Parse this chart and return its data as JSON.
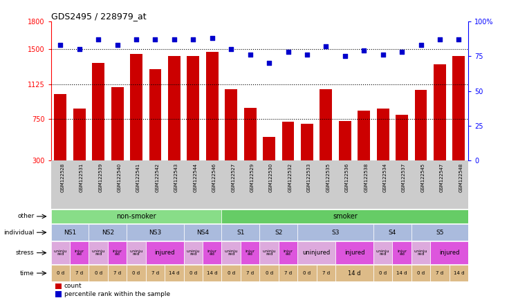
{
  "title": "GDS2495 / 228979_at",
  "samples": [
    "GSM122528",
    "GSM122531",
    "GSM122539",
    "GSM122540",
    "GSM122541",
    "GSM122542",
    "GSM122543",
    "GSM122544",
    "GSM122546",
    "GSM122527",
    "GSM122529",
    "GSM122530",
    "GSM122532",
    "GSM122533",
    "GSM122535",
    "GSM122536",
    "GSM122538",
    "GSM122534",
    "GSM122537",
    "GSM122545",
    "GSM122547",
    "GSM122548"
  ],
  "counts": [
    1020,
    860,
    1350,
    1090,
    1450,
    1290,
    1430,
    1430,
    1470,
    1070,
    870,
    560,
    720,
    700,
    1070,
    730,
    840,
    860,
    795,
    1060,
    1340,
    1430
  ],
  "percentiles": [
    83,
    80,
    87,
    83,
    87,
    87,
    87,
    87,
    88,
    80,
    76,
    70,
    78,
    76,
    82,
    75,
    79,
    76,
    78,
    83,
    87,
    87
  ],
  "ylim_left": [
    300,
    1800
  ],
  "ylim_right": [
    0,
    100
  ],
  "yticks_left": [
    300,
    750,
    1125,
    1500,
    1800
  ],
  "yticks_right": [
    0,
    25,
    50,
    75,
    100
  ],
  "hlines": [
    750,
    1125,
    1500
  ],
  "bar_color": "#cc0000",
  "dot_color": "#0000cc",
  "other_row": {
    "label": "other",
    "groups": [
      {
        "text": "non-smoker",
        "start": 0,
        "end": 9,
        "color": "#88dd88"
      },
      {
        "text": "smoker",
        "start": 9,
        "end": 22,
        "color": "#66cc66"
      }
    ]
  },
  "individual_row": {
    "label": "individual",
    "groups": [
      {
        "text": "NS1",
        "start": 0,
        "end": 2,
        "color": "#aabbdd"
      },
      {
        "text": "NS2",
        "start": 2,
        "end": 4,
        "color": "#aabbdd"
      },
      {
        "text": "NS3",
        "start": 4,
        "end": 7,
        "color": "#aabbdd"
      },
      {
        "text": "NS4",
        "start": 7,
        "end": 9,
        "color": "#aabbdd"
      },
      {
        "text": "S1",
        "start": 9,
        "end": 11,
        "color": "#aabbdd"
      },
      {
        "text": "S2",
        "start": 11,
        "end": 13,
        "color": "#aabbdd"
      },
      {
        "text": "S3",
        "start": 13,
        "end": 17,
        "color": "#aabbdd"
      },
      {
        "text": "S4",
        "start": 17,
        "end": 19,
        "color": "#aabbdd"
      },
      {
        "text": "S5",
        "start": 19,
        "end": 22,
        "color": "#aabbdd"
      }
    ]
  },
  "stress_row": {
    "label": "stress",
    "groups": [
      {
        "text": "uninju\nred",
        "start": 0,
        "end": 1,
        "color": "#ddaadd"
      },
      {
        "text": "injur\ned",
        "start": 1,
        "end": 2,
        "color": "#dd55dd"
      },
      {
        "text": "uninju\nred",
        "start": 2,
        "end": 3,
        "color": "#ddaadd"
      },
      {
        "text": "injur\ned",
        "start": 3,
        "end": 4,
        "color": "#dd55dd"
      },
      {
        "text": "uninju\nred",
        "start": 4,
        "end": 5,
        "color": "#ddaadd"
      },
      {
        "text": "injured",
        "start": 5,
        "end": 7,
        "color": "#dd55dd"
      },
      {
        "text": "uninju\nred",
        "start": 7,
        "end": 8,
        "color": "#ddaadd"
      },
      {
        "text": "injur\ned",
        "start": 8,
        "end": 9,
        "color": "#dd55dd"
      },
      {
        "text": "uninju\nred",
        "start": 9,
        "end": 10,
        "color": "#ddaadd"
      },
      {
        "text": "injur\ned",
        "start": 10,
        "end": 11,
        "color": "#dd55dd"
      },
      {
        "text": "uninju\nred",
        "start": 11,
        "end": 12,
        "color": "#ddaadd"
      },
      {
        "text": "injur\ned",
        "start": 12,
        "end": 13,
        "color": "#dd55dd"
      },
      {
        "text": "uninjured",
        "start": 13,
        "end": 15,
        "color": "#ddaadd"
      },
      {
        "text": "injured",
        "start": 15,
        "end": 17,
        "color": "#dd55dd"
      },
      {
        "text": "uninju\nred",
        "start": 17,
        "end": 18,
        "color": "#ddaadd"
      },
      {
        "text": "injur\ned",
        "start": 18,
        "end": 19,
        "color": "#dd55dd"
      },
      {
        "text": "uninju\nred",
        "start": 19,
        "end": 20,
        "color": "#ddaadd"
      },
      {
        "text": "injured",
        "start": 20,
        "end": 22,
        "color": "#dd55dd"
      }
    ]
  },
  "time_row": {
    "label": "time",
    "groups": [
      {
        "text": "0 d",
        "start": 0,
        "end": 1,
        "color": "#ddbb88"
      },
      {
        "text": "7 d",
        "start": 1,
        "end": 2,
        "color": "#ddbb88"
      },
      {
        "text": "0 d",
        "start": 2,
        "end": 3,
        "color": "#ddbb88"
      },
      {
        "text": "7 d",
        "start": 3,
        "end": 4,
        "color": "#ddbb88"
      },
      {
        "text": "0 d",
        "start": 4,
        "end": 5,
        "color": "#ddbb88"
      },
      {
        "text": "7 d",
        "start": 5,
        "end": 6,
        "color": "#ddbb88"
      },
      {
        "text": "14 d",
        "start": 6,
        "end": 7,
        "color": "#ddbb88"
      },
      {
        "text": "0 d",
        "start": 7,
        "end": 8,
        "color": "#ddbb88"
      },
      {
        "text": "14 d",
        "start": 8,
        "end": 9,
        "color": "#ddbb88"
      },
      {
        "text": "0 d",
        "start": 9,
        "end": 10,
        "color": "#ddbb88"
      },
      {
        "text": "7 d",
        "start": 10,
        "end": 11,
        "color": "#ddbb88"
      },
      {
        "text": "0 d",
        "start": 11,
        "end": 12,
        "color": "#ddbb88"
      },
      {
        "text": "7 d",
        "start": 12,
        "end": 13,
        "color": "#ddbb88"
      },
      {
        "text": "0 d",
        "start": 13,
        "end": 14,
        "color": "#ddbb88"
      },
      {
        "text": "7 d",
        "start": 14,
        "end": 15,
        "color": "#ddbb88"
      },
      {
        "text": "14 d",
        "start": 15,
        "end": 17,
        "color": "#ddbb88"
      },
      {
        "text": "0 d",
        "start": 17,
        "end": 18,
        "color": "#ddbb88"
      },
      {
        "text": "14 d",
        "start": 18,
        "end": 19,
        "color": "#ddbb88"
      },
      {
        "text": "0 d",
        "start": 19,
        "end": 20,
        "color": "#ddbb88"
      },
      {
        "text": "7 d",
        "start": 20,
        "end": 21,
        "color": "#ddbb88"
      },
      {
        "text": "14 d",
        "start": 21,
        "end": 22,
        "color": "#ddbb88"
      }
    ]
  },
  "legend": [
    {
      "label": "count",
      "color": "#cc0000"
    },
    {
      "label": "percentile rank within the sample",
      "color": "#0000cc"
    }
  ],
  "bg_color": "#ffffff",
  "xtick_bg": "#cccccc"
}
